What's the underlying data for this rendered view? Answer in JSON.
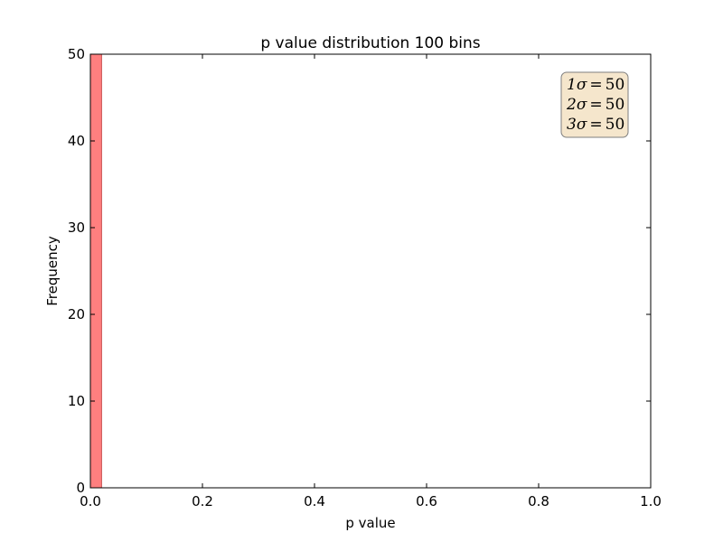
{
  "chart_data": {
    "type": "bar",
    "title": "p value distribution 100 bins",
    "xlabel": "p value",
    "ylabel": "Frequency",
    "xlim": [
      0.0,
      1.0
    ],
    "ylim": [
      0,
      50
    ],
    "grid": false,
    "bin_width": 0.02,
    "bins": [
      {
        "start": 0.0,
        "end": 0.02,
        "count": 50
      }
    ],
    "bar_color": "#ff7f7f",
    "bar_edge_color": "#c85050",
    "x_ticks": [
      {
        "value": 0.0,
        "label": "0.0"
      },
      {
        "value": 0.2,
        "label": "0.2"
      },
      {
        "value": 0.4,
        "label": "0.4"
      },
      {
        "value": 0.6,
        "label": "0.6"
      },
      {
        "value": 0.8,
        "label": "0.8"
      },
      {
        "value": 1.0,
        "label": "1.0"
      }
    ],
    "y_ticks": [
      {
        "value": 0,
        "label": "0"
      },
      {
        "value": 10,
        "label": "10"
      },
      {
        "value": 20,
        "label": "20"
      },
      {
        "value": 30,
        "label": "30"
      },
      {
        "value": 40,
        "label": "40"
      },
      {
        "value": 50,
        "label": "50"
      }
    ],
    "annotation": {
      "placement": "top-right",
      "background": "#f5e6cc",
      "border": "#7f7f7f",
      "lines": [
        {
          "prefix": "1σ",
          "equals": "=",
          "value": "50"
        },
        {
          "prefix": "2σ",
          "equals": "=",
          "value": "50"
        },
        {
          "prefix": "3σ",
          "equals": "=",
          "value": "50"
        }
      ]
    }
  }
}
